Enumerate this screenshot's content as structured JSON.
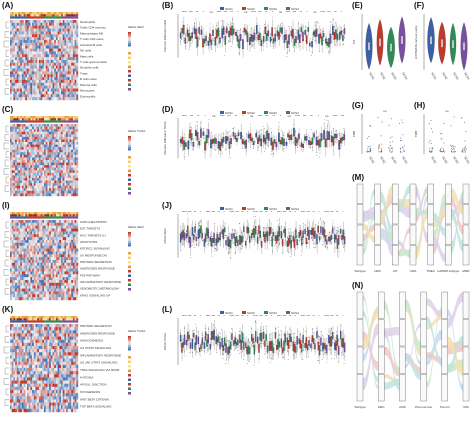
{
  "panels": {
    "A": {
      "label": "(A)",
      "legend": [
        "Age",
        "Stage",
        "Subtype"
      ],
      "legend_title": "Matrix GEO"
    },
    "B": {
      "label": "(B)",
      "ylabel": "Immune infiltration GEO",
      "subtypes": [
        "SCS1",
        "SCS2",
        "SCS3",
        "SCS4"
      ],
      "legend_title": "Subtype"
    },
    "C": {
      "label": "(C)",
      "legend_title": "Matrix TCGA"
    },
    "D": {
      "label": "(D)",
      "ylabel": "Immune infiltration TCGA",
      "subtypes": [
        "SCS1",
        "SCS2",
        "SCS3",
        "SCS4"
      ]
    },
    "E": {
      "label": "(E)",
      "ylabel": "TIS"
    },
    "F": {
      "label": "(F)",
      "ylabel": "ESTIMATE tumour purity"
    },
    "G": {
      "label": "(G)",
      "ylabel": "TMB",
      "ns": "ns"
    },
    "H": {
      "label": "(H)",
      "ylabel": "TMB",
      "ns": "ns"
    },
    "I": {
      "label": "(I)",
      "legend_title": "Matrix GEO"
    },
    "J": {
      "label": "(J)",
      "ylabel": "GSVA GEO",
      "subtypes": [
        "SCS1",
        "SCS2",
        "SCS3",
        "SCS4"
      ]
    },
    "K": {
      "label": "(K)",
      "legend_title": "Matrix TCGA"
    },
    "L": {
      "label": "(L)",
      "ylabel": "GSVA TCGA",
      "subtypes": [
        "SCS1",
        "SCS2",
        "SCS3",
        "SCS4"
      ]
    },
    "M": {
      "label": "(M)",
      "axis": [
        "Subtype",
        "HMC",
        "CIT",
        "CMS",
        "TMEC",
        "locPRM subtype",
        "MMR"
      ]
    },
    "N": {
      "label": "(N)",
      "axis": [
        "Subtype",
        "HMC",
        "CMS",
        "Pan-immune",
        "Pan-GI",
        "MSI"
      ]
    }
  },
  "heatmap_rows": {
    "A": [
      "Neutrophils",
      "Tcells CD4 memory",
      "Macrophages M0",
      "T cells CD4 naive",
      "Activated B cells",
      "NK cells",
      "Mast cells",
      "T cells gamma delta",
      "Dendritic cells",
      "Tregs",
      "B cells naive",
      "Plasma cells",
      "Monocytes",
      "Eosinophils"
    ],
    "I": [
      "G2M CHECKPOINT",
      "E2F TARGETS",
      "MYC TARGETS V1",
      "APOPTOSIS",
      "MTORC1 SIGNALING",
      "UV RESPONSE DN",
      "PROTEIN SECRETION",
      "ANDROGEN RESPONSE",
      "P53 PATHWAY",
      "INFLAMMATORY RESPONSE",
      "XENOBIOTIC METABOLISM",
      "KRAS SIGNALING UP"
    ],
    "K": [
      "PROTEIN SECRETION",
      "ANDROGEN RESPONSE",
      "ANGIOGENESIS",
      "IL2 STAT5 SIGNALING",
      "INFLAMMATORY RESPONSE",
      "IL6 JAK STAT3 SIGNALING",
      "TNFA SIGNALING VIA NFKB",
      "HYPOXIA",
      "APICAL JUNCTION",
      "MYOGENESIS",
      "WNT BETA CATENIN",
      "TGF BETA SIGNALING"
    ]
  },
  "colors": {
    "SCS1": "#3b5fa8",
    "SCS2": "#c0392b",
    "SCS3": "#2e8b57",
    "SCS4": "#7b4fa0",
    "heat_red": "#c0392b",
    "heat_blue": "#3b6fb6",
    "heat_white": "#f2f2f2"
  }
}
